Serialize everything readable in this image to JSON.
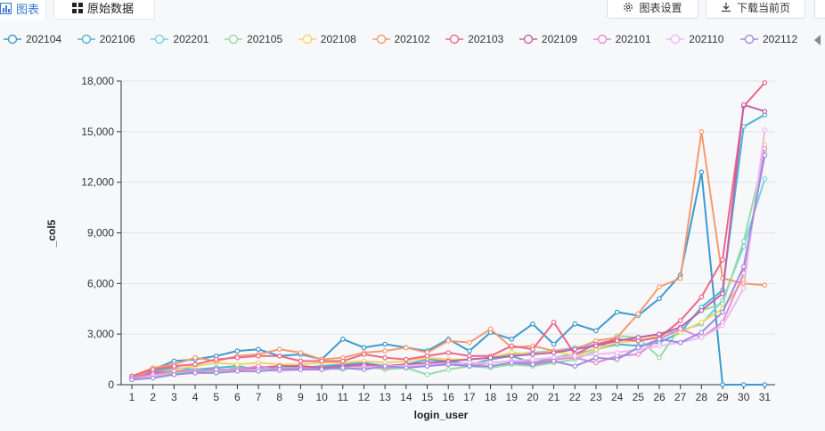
{
  "toolbar": {
    "tab_chart": "图表",
    "tab_raw": "原始数据",
    "settings_label": "图表设置",
    "download_label": "下载当前页",
    "icons": {
      "tab_chart": "bar-chart-icon",
      "tab_raw": "grid-icon",
      "settings": "gear-icon",
      "download": "download-icon",
      "legend_prev": "caret-left-icon"
    }
  },
  "chart_data": {
    "type": "line",
    "xlabel": "login_user",
    "ylabel": "_col5",
    "x": [
      1,
      2,
      3,
      4,
      5,
      6,
      7,
      8,
      9,
      10,
      11,
      12,
      13,
      14,
      15,
      16,
      17,
      18,
      19,
      20,
      21,
      22,
      23,
      24,
      25,
      26,
      27,
      28,
      29,
      30,
      31
    ],
    "yticks": [
      "0",
      "3,000",
      "6,000",
      "9,000",
      "12,000",
      "15,000",
      "18,000"
    ],
    "ylim": [
      0,
      18000
    ],
    "grid": true,
    "legend_position": "top",
    "series": [
      {
        "name": "202104",
        "color": "#3c9ad0",
        "values": [
          500,
          900,
          1400,
          1500,
          1700,
          2000,
          2100,
          1700,
          1800,
          1500,
          2700,
          2200,
          2400,
          2200,
          2000,
          2700,
          2000,
          3100,
          2700,
          3600,
          2400,
          3600,
          3200,
          4300,
          4100,
          5100,
          6500,
          12600,
          0,
          0,
          0
        ]
      },
      {
        "name": "202106",
        "color": "#48b2d8",
        "values": [
          400,
          800,
          1000,
          900,
          1000,
          1100,
          900,
          1100,
          1000,
          1100,
          1200,
          1300,
          1100,
          1200,
          1500,
          1400,
          1200,
          1500,
          1700,
          1300,
          1600,
          1800,
          2100,
          2400,
          2300,
          2500,
          3100,
          4600,
          5600,
          15300,
          16000
        ]
      },
      {
        "name": "202201",
        "color": "#6fd3e0",
        "values": [
          400,
          600,
          800,
          900,
          800,
          1000,
          900,
          1000,
          1100,
          1000,
          1100,
          1200,
          1100,
          1200,
          1300,
          1400,
          1500,
          1600,
          1800,
          1900,
          2000,
          2200,
          2400,
          2600,
          2800,
          3000,
          3200,
          3600,
          5000,
          8200,
          12200
        ]
      },
      {
        "name": "202105",
        "color": "#95dba8",
        "values": [
          300,
          500,
          700,
          800,
          800,
          900,
          900,
          1000,
          900,
          1000,
          900,
          1100,
          900,
          1000,
          600,
          900,
          1100,
          1000,
          1200,
          1100,
          1300,
          1500,
          2000,
          2900,
          2800,
          1600,
          3400,
          4400,
          4800,
          8500,
          13800
        ]
      },
      {
        "name": "202108",
        "color": "#f8d35e",
        "values": [
          500,
          700,
          900,
          1100,
          1300,
          1200,
          1300,
          1200,
          1200,
          1300,
          1300,
          1400,
          1300,
          1400,
          1600,
          1500,
          1500,
          1600,
          1900,
          1800,
          2000,
          1700,
          2100,
          2500,
          2600,
          2900,
          3100,
          3700,
          4500,
          6200,
          14200
        ]
      },
      {
        "name": "202102",
        "color": "#f59a6f",
        "values": [
          500,
          1000,
          1200,
          1600,
          1400,
          1700,
          1800,
          2100,
          1900,
          1500,
          1600,
          1900,
          2000,
          2200,
          1900,
          2600,
          2500,
          3300,
          2200,
          2300,
          2000,
          2100,
          2600,
          2800,
          4200,
          5800,
          6300,
          15000,
          6300,
          6000,
          5900
        ]
      },
      {
        "name": "202103",
        "color": "#ec6688",
        "values": [
          500,
          900,
          1100,
          1200,
          1500,
          1600,
          1700,
          1700,
          1400,
          1400,
          1400,
          1800,
          1600,
          1500,
          1700,
          1900,
          1700,
          1700,
          2300,
          2100,
          3700,
          1800,
          2400,
          2700,
          2600,
          2800,
          3800,
          5200,
          7400,
          16500,
          17900
        ]
      },
      {
        "name": "202109",
        "color": "#c460a6",
        "values": [
          400,
          700,
          800,
          800,
          900,
          900,
          1000,
          1100,
          1100,
          1000,
          1100,
          1200,
          1100,
          1200,
          1300,
          1400,
          1500,
          1600,
          1700,
          1800,
          1900,
          2100,
          2300,
          2600,
          2800,
          3000,
          3400,
          4400,
          5400,
          16600,
          16200
        ]
      },
      {
        "name": "202101",
        "color": "#e48bd0",
        "values": [
          400,
          600,
          800,
          800,
          900,
          900,
          1100,
          900,
          1000,
          900,
          1000,
          1100,
          1000,
          1100,
          1200,
          1300,
          1100,
          1300,
          1400,
          1300,
          1500,
          1600,
          1300,
          1700,
          1800,
          2700,
          3300,
          2800,
          3700,
          6600,
          14000
        ]
      },
      {
        "name": "202110",
        "color": "#ecbaf0",
        "values": [
          300,
          500,
          600,
          700,
          700,
          800,
          900,
          800,
          900,
          900,
          1000,
          1000,
          1100,
          1100,
          1200,
          1200,
          1300,
          1300,
          1400,
          1500,
          1600,
          1700,
          1800,
          1900,
          2100,
          2300,
          2500,
          2800,
          3500,
          5700,
          15100
        ]
      },
      {
        "name": "202112",
        "color": "#9d8be0",
        "values": [
          300,
          400,
          600,
          700,
          700,
          800,
          800,
          900,
          900,
          900,
          1000,
          900,
          1100,
          1000,
          1100,
          1200,
          1100,
          1100,
          1300,
          1200,
          1400,
          1100,
          1600,
          1500,
          2200,
          2700,
          2500,
          3100,
          4300,
          7000,
          13600
        ]
      }
    ]
  }
}
